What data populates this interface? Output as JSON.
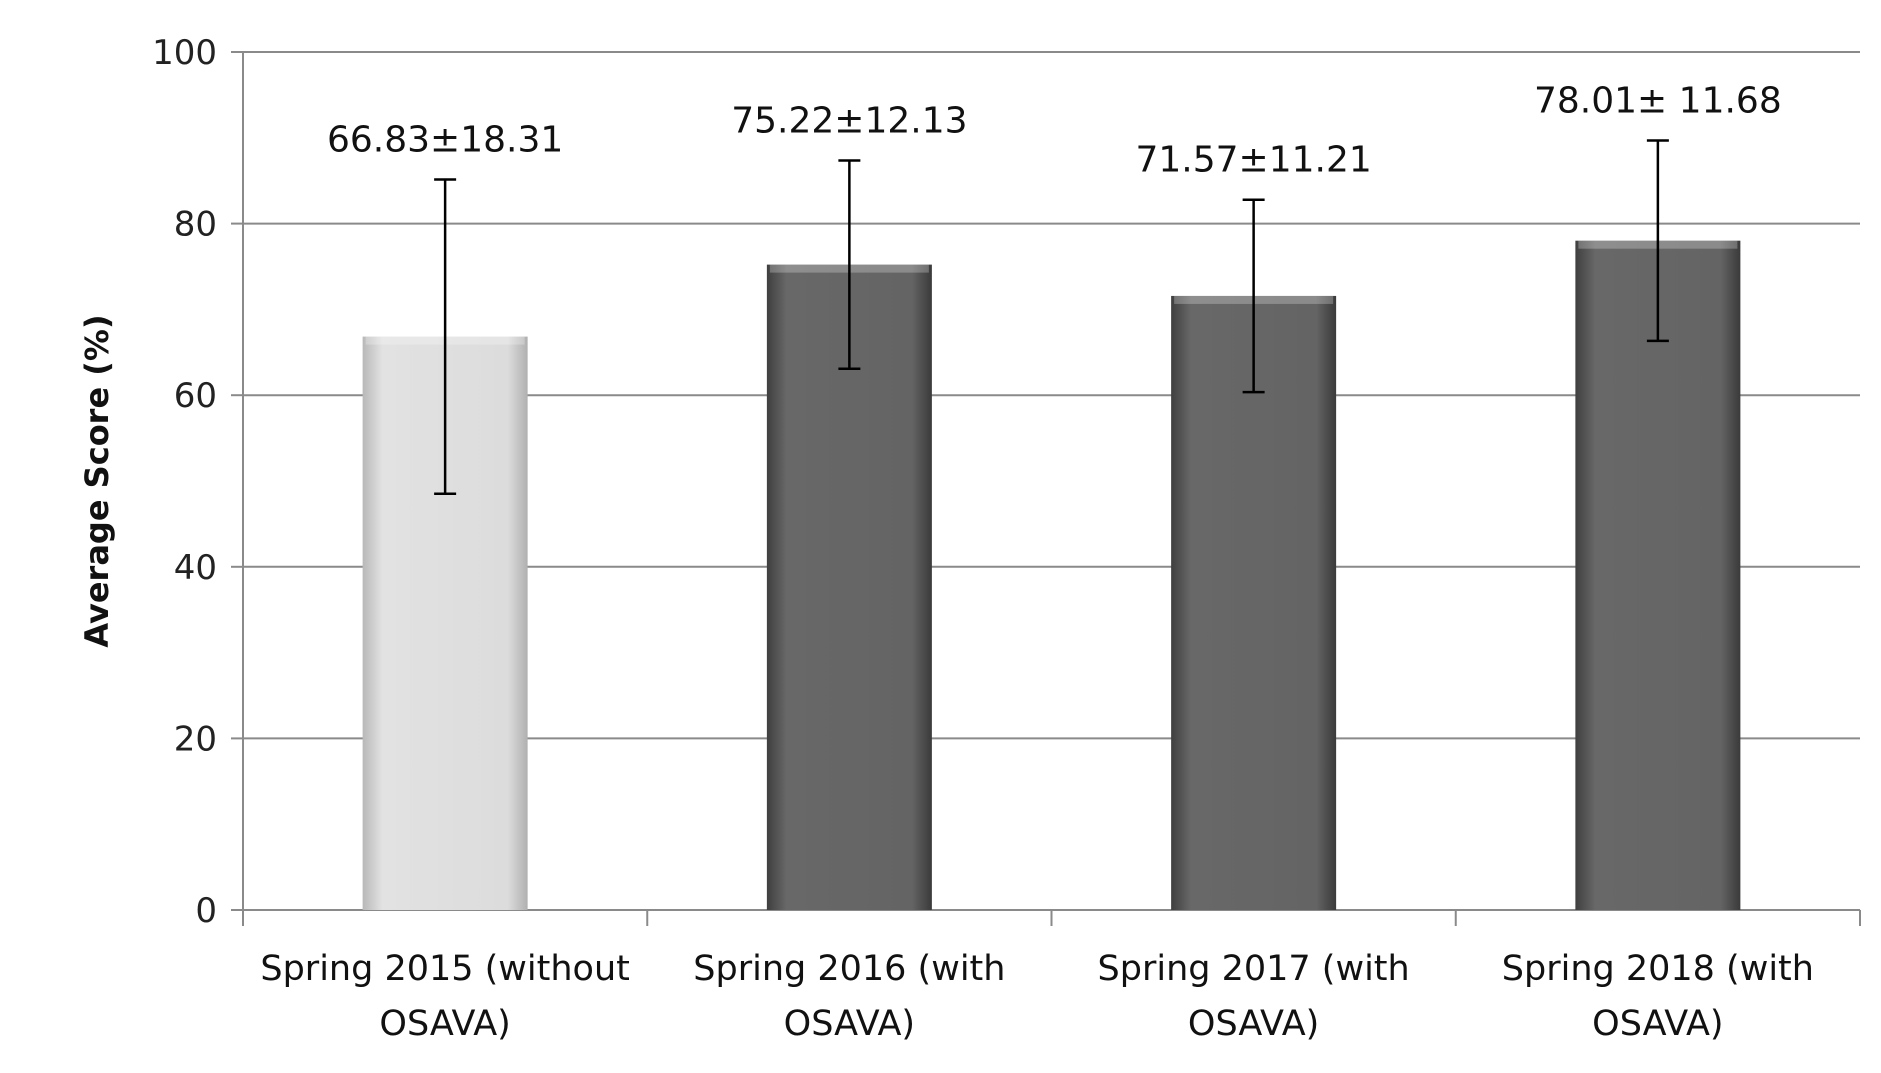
{
  "chart_data": {
    "type": "bar",
    "title": "",
    "xlabel": "",
    "ylabel": "Average Score  (%)",
    "ylim": [
      0,
      100
    ],
    "yticks": [
      0,
      20,
      40,
      60,
      80,
      100
    ],
    "grid": true,
    "categories": [
      [
        "Spring 2015 (without",
        "OSAVA)"
      ],
      [
        "Spring 2016 (with",
        "OSAVA)"
      ],
      [
        "Spring 2017 (with",
        "OSAVA)"
      ],
      [
        "Spring 2018 (with",
        "OSAVA)"
      ]
    ],
    "values": [
      66.83,
      75.22,
      71.57,
      78.01
    ],
    "errors": [
      18.31,
      12.13,
      11.21,
      11.68
    ],
    "data_labels": [
      "66.83±18.31",
      "75.22±12.13",
      "71.57±11.21",
      "78.01± 11.68"
    ],
    "colors": [
      "#d4d4d4",
      "#5e5e5e",
      "#5e5e5e",
      "#5e5e5e"
    ]
  }
}
